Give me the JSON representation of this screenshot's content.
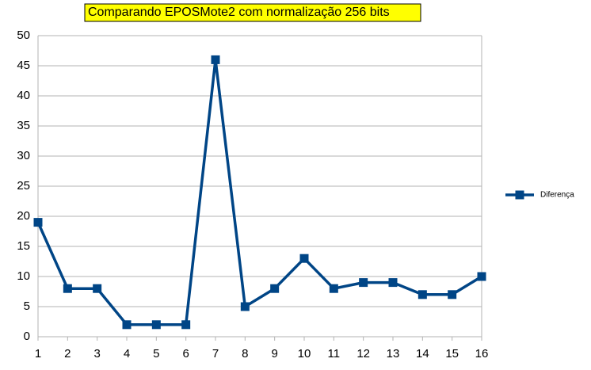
{
  "chart_data": {
    "type": "line",
    "title": "Comparando EPOSMote2 com normalização 256 bits",
    "x": [
      1,
      2,
      3,
      4,
      5,
      6,
      7,
      8,
      9,
      10,
      11,
      12,
      13,
      14,
      15,
      16
    ],
    "xlim": [
      1,
      16
    ],
    "xticks": [
      1,
      2,
      3,
      4,
      5,
      6,
      7,
      8,
      9,
      10,
      11,
      12,
      13,
      14,
      15,
      16
    ],
    "ylim": [
      0,
      50
    ],
    "yticks": [
      0,
      5,
      10,
      15,
      20,
      25,
      30,
      35,
      40,
      45,
      50
    ],
    "grid": true,
    "legend": "right",
    "series": [
      {
        "name": "Diferença",
        "color": "#004586",
        "values": [
          19,
          8,
          8,
          2,
          2,
          2,
          46,
          5,
          8,
          13,
          8,
          9,
          9,
          7,
          7,
          10
        ]
      }
    ]
  }
}
